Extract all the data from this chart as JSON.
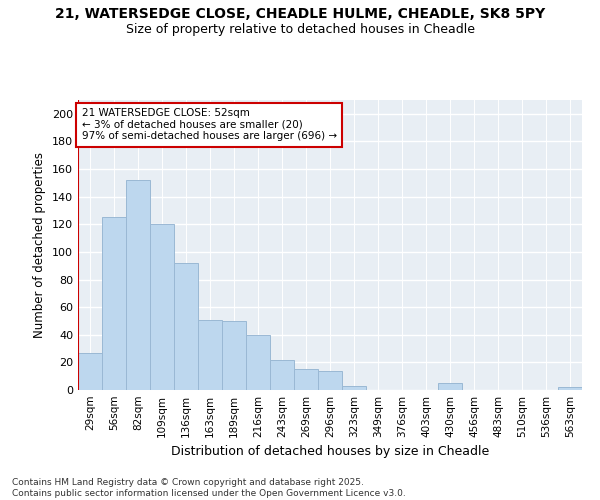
{
  "title_line1": "21, WATERSEDGE CLOSE, CHEADLE HULME, CHEADLE, SK8 5PY",
  "title_line2": "Size of property relative to detached houses in Cheadle",
  "xlabel": "Distribution of detached houses by size in Cheadle",
  "ylabel": "Number of detached properties",
  "footnote_line1": "Contains HM Land Registry data © Crown copyright and database right 2025.",
  "footnote_line2": "Contains public sector information licensed under the Open Government Licence v3.0.",
  "annotation_line1": "21 WATERSEDGE CLOSE: 52sqm",
  "annotation_line2": "← 3% of detached houses are smaller (20)",
  "annotation_line3": "97% of semi-detached houses are larger (696) →",
  "bar_color": "#bdd7ee",
  "bar_edge_color": "#9ab8d4",
  "highlight_color": "#cc0000",
  "bg_color": "#e8eef4",
  "categories": [
    "29sqm",
    "56sqm",
    "82sqm",
    "109sqm",
    "136sqm",
    "163sqm",
    "189sqm",
    "216sqm",
    "243sqm",
    "269sqm",
    "296sqm",
    "323sqm",
    "349sqm",
    "376sqm",
    "403sqm",
    "430sqm",
    "456sqm",
    "483sqm",
    "510sqm",
    "536sqm",
    "563sqm"
  ],
  "values": [
    27,
    125,
    152,
    120,
    92,
    51,
    50,
    40,
    22,
    15,
    14,
    3,
    0,
    0,
    0,
    5,
    0,
    0,
    0,
    0,
    2
  ],
  "vline_x": -0.5,
  "ylim": [
    0,
    210
  ],
  "yticks": [
    0,
    20,
    40,
    60,
    80,
    100,
    120,
    140,
    160,
    180,
    200
  ],
  "figsize": [
    6.0,
    5.0
  ],
  "dpi": 100
}
